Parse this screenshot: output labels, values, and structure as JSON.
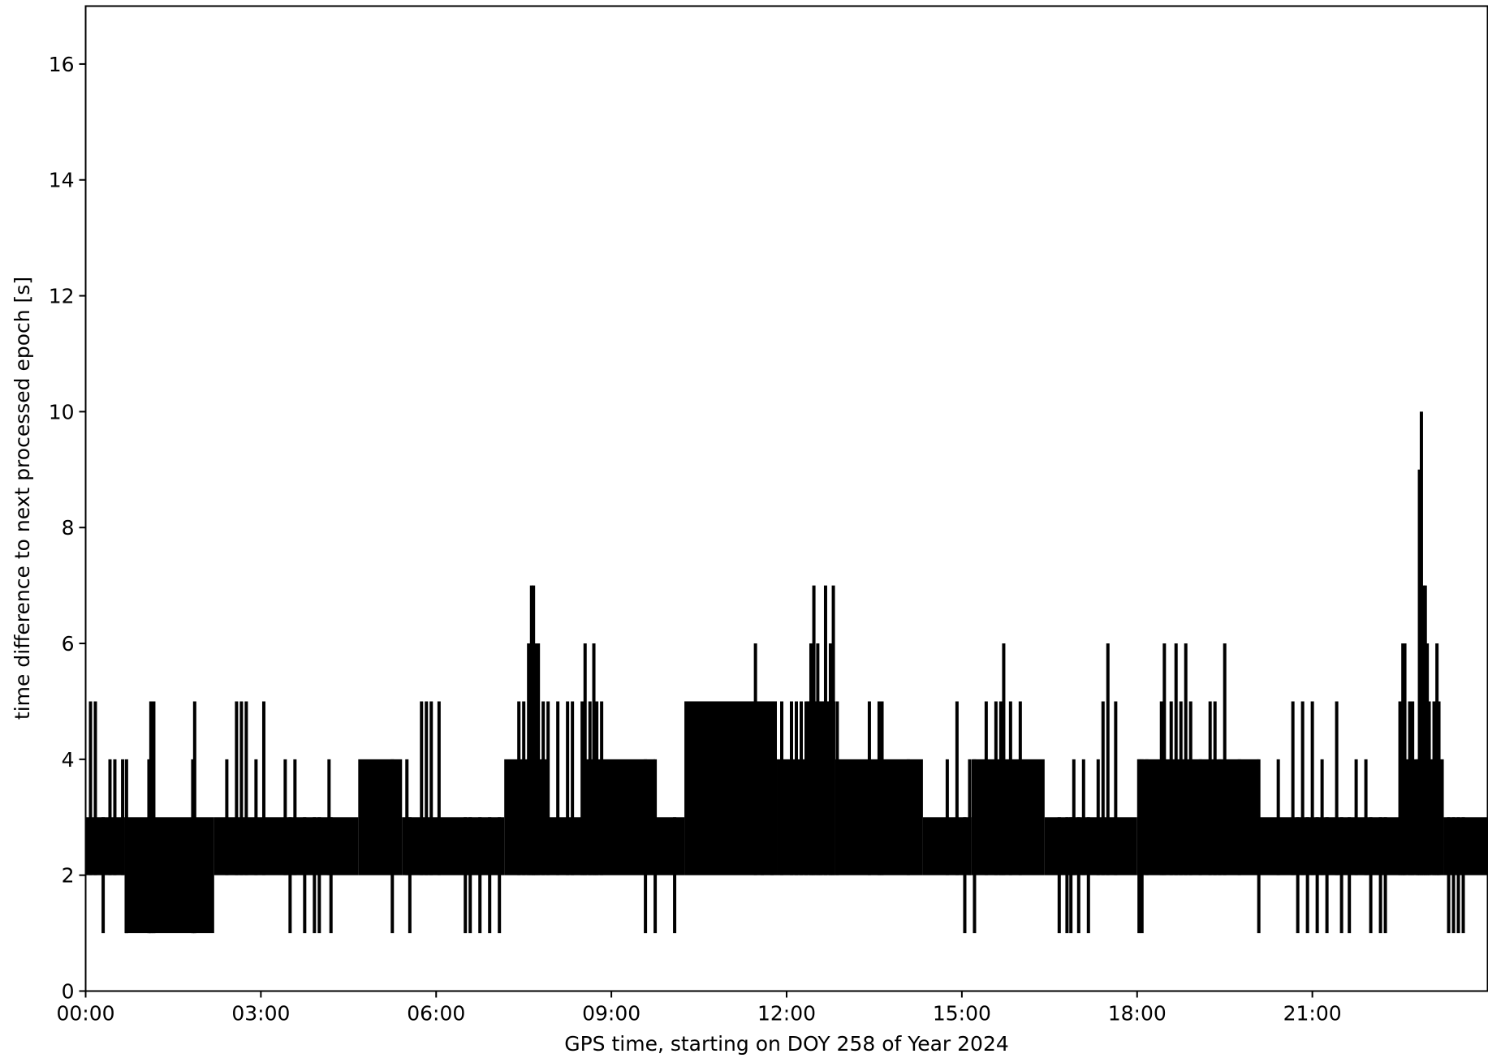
{
  "chart_data": {
    "type": "line",
    "title": "",
    "xlabel": "GPS time, starting on DOY 258 of Year 2024",
    "ylabel": "time difference to next processed epoch [s]",
    "xlim": [
      "00:00",
      "24:00"
    ],
    "ylim": [
      0,
      17
    ],
    "x_unit": "hours",
    "x_ticks": [
      "00:00",
      "03:00",
      "06:00",
      "09:00",
      "12:00",
      "15:00",
      "18:00",
      "21:00"
    ],
    "y_ticks": [
      "0",
      "2",
      "4",
      "6",
      "8",
      "10",
      "12",
      "14",
      "16"
    ],
    "grid": false,
    "line_color": "#000000",
    "band_segments": [
      {
        "from": "00:00",
        "to": "00:40",
        "low": 2,
        "high": 3
      },
      {
        "from": "00:40",
        "to": "02:12",
        "low": 1,
        "high": 3
      },
      {
        "from": "02:12",
        "to": "04:40",
        "low": 2,
        "high": 3
      },
      {
        "from": "04:40",
        "to": "05:25",
        "low": 2,
        "high": 4
      },
      {
        "from": "05:25",
        "to": "07:10",
        "low": 2,
        "high": 3
      },
      {
        "from": "07:10",
        "to": "07:55",
        "low": 2,
        "high": 4
      },
      {
        "from": "07:55",
        "to": "08:30",
        "low": 2,
        "high": 3
      },
      {
        "from": "08:30",
        "to": "09:45",
        "low": 2,
        "high": 4
      },
      {
        "from": "09:45",
        "to": "10:15",
        "low": 2,
        "high": 3
      },
      {
        "from": "10:15",
        "to": "11:50",
        "low": 2,
        "high": 5
      },
      {
        "from": "11:50",
        "to": "12:20",
        "low": 2,
        "high": 4
      },
      {
        "from": "12:20",
        "to": "12:50",
        "low": 2,
        "high": 5
      },
      {
        "from": "12:50",
        "to": "14:20",
        "low": 2,
        "high": 4
      },
      {
        "from": "14:20",
        "to": "15:10",
        "low": 2,
        "high": 3
      },
      {
        "from": "15:10",
        "to": "16:25",
        "low": 2,
        "high": 4
      },
      {
        "from": "16:25",
        "to": "18:00",
        "low": 2,
        "high": 3
      },
      {
        "from": "18:00",
        "to": "20:05",
        "low": 2,
        "high": 4
      },
      {
        "from": "20:05",
        "to": "22:30",
        "low": 2,
        "high": 3
      },
      {
        "from": "22:30",
        "to": "23:15",
        "low": 2,
        "high": 4
      },
      {
        "from": "23:15",
        "to": "24:00",
        "low": 2,
        "high": 3
      }
    ],
    "spikes": [
      {
        "t": "00:05",
        "v": 5
      },
      {
        "t": "00:10",
        "v": 5
      },
      {
        "t": "00:18",
        "v": 1
      },
      {
        "t": "00:25",
        "v": 4
      },
      {
        "t": "00:30",
        "v": 4
      },
      {
        "t": "00:38",
        "v": 4
      },
      {
        "t": "00:42",
        "v": 4
      },
      {
        "t": "01:05",
        "v": 4
      },
      {
        "t": "01:07",
        "v": 5
      },
      {
        "t": "01:10",
        "v": 5
      },
      {
        "t": "01:50",
        "v": 4
      },
      {
        "t": "01:52",
        "v": 5
      },
      {
        "t": "02:25",
        "v": 4
      },
      {
        "t": "02:35",
        "v": 5
      },
      {
        "t": "02:40",
        "v": 5
      },
      {
        "t": "02:45",
        "v": 5
      },
      {
        "t": "02:55",
        "v": 4
      },
      {
        "t": "03:03",
        "v": 5
      },
      {
        "t": "03:25",
        "v": 4
      },
      {
        "t": "03:30",
        "v": 1
      },
      {
        "t": "03:35",
        "v": 4
      },
      {
        "t": "03:45",
        "v": 1
      },
      {
        "t": "03:55",
        "v": 1
      },
      {
        "t": "04:00",
        "v": 1
      },
      {
        "t": "04:10",
        "v": 4
      },
      {
        "t": "04:12",
        "v": 1
      },
      {
        "t": "05:15",
        "v": 1
      },
      {
        "t": "05:30",
        "v": 4
      },
      {
        "t": "05:33",
        "v": 1
      },
      {
        "t": "05:45",
        "v": 5
      },
      {
        "t": "05:50",
        "v": 5
      },
      {
        "t": "05:55",
        "v": 5
      },
      {
        "t": "06:03",
        "v": 5
      },
      {
        "t": "06:30",
        "v": 1
      },
      {
        "t": "06:35",
        "v": 1
      },
      {
        "t": "06:45",
        "v": 1
      },
      {
        "t": "06:55",
        "v": 1
      },
      {
        "t": "07:05",
        "v": 1
      },
      {
        "t": "07:25",
        "v": 5
      },
      {
        "t": "07:30",
        "v": 5
      },
      {
        "t": "07:35",
        "v": 6
      },
      {
        "t": "07:38",
        "v": 7
      },
      {
        "t": "07:40",
        "v": 7
      },
      {
        "t": "07:42",
        "v": 6
      },
      {
        "t": "07:45",
        "v": 6
      },
      {
        "t": "07:50",
        "v": 5
      },
      {
        "t": "07:55",
        "v": 5
      },
      {
        "t": "08:05",
        "v": 5
      },
      {
        "t": "08:15",
        "v": 5
      },
      {
        "t": "08:20",
        "v": 5
      },
      {
        "t": "08:30",
        "v": 5
      },
      {
        "t": "08:33",
        "v": 6
      },
      {
        "t": "08:38",
        "v": 5
      },
      {
        "t": "08:42",
        "v": 6
      },
      {
        "t": "08:45",
        "v": 5
      },
      {
        "t": "08:50",
        "v": 5
      },
      {
        "t": "09:35",
        "v": 1
      },
      {
        "t": "09:45",
        "v": 1
      },
      {
        "t": "10:05",
        "v": 1
      },
      {
        "t": "11:28",
        "v": 6
      },
      {
        "t": "11:35",
        "v": 5
      },
      {
        "t": "11:45",
        "v": 4
      },
      {
        "t": "11:55",
        "v": 5
      },
      {
        "t": "12:05",
        "v": 5
      },
      {
        "t": "12:10",
        "v": 5
      },
      {
        "t": "12:15",
        "v": 5
      },
      {
        "t": "12:20",
        "v": 5
      },
      {
        "t": "12:25",
        "v": 6
      },
      {
        "t": "12:28",
        "v": 7
      },
      {
        "t": "12:32",
        "v": 6
      },
      {
        "t": "12:35",
        "v": 5
      },
      {
        "t": "12:40",
        "v": 7
      },
      {
        "t": "12:45",
        "v": 6
      },
      {
        "t": "12:48",
        "v": 7
      },
      {
        "t": "12:52",
        "v": 5
      },
      {
        "t": "13:25",
        "v": 5
      },
      {
        "t": "13:35",
        "v": 5
      },
      {
        "t": "13:38",
        "v": 5
      },
      {
        "t": "14:05",
        "v": 4
      },
      {
        "t": "14:45",
        "v": 4
      },
      {
        "t": "14:55",
        "v": 5
      },
      {
        "t": "15:03",
        "v": 1
      },
      {
        "t": "15:08",
        "v": 4
      },
      {
        "t": "15:13",
        "v": 1
      },
      {
        "t": "15:25",
        "v": 5
      },
      {
        "t": "15:35",
        "v": 5
      },
      {
        "t": "15:40",
        "v": 5
      },
      {
        "t": "15:43",
        "v": 6
      },
      {
        "t": "15:50",
        "v": 5
      },
      {
        "t": "16:00",
        "v": 5
      },
      {
        "t": "16:40",
        "v": 1
      },
      {
        "t": "16:48",
        "v": 1
      },
      {
        "t": "16:52",
        "v": 1
      },
      {
        "t": "16:55",
        "v": 4
      },
      {
        "t": "17:00",
        "v": 1
      },
      {
        "t": "17:05",
        "v": 4
      },
      {
        "t": "17:10",
        "v": 1
      },
      {
        "t": "17:20",
        "v": 4
      },
      {
        "t": "17:25",
        "v": 5
      },
      {
        "t": "17:30",
        "v": 6
      },
      {
        "t": "17:38",
        "v": 5
      },
      {
        "t": "18:02",
        "v": 1
      },
      {
        "t": "18:05",
        "v": 1
      },
      {
        "t": "18:10",
        "v": 4
      },
      {
        "t": "18:25",
        "v": 5
      },
      {
        "t": "18:28",
        "v": 6
      },
      {
        "t": "18:35",
        "v": 5
      },
      {
        "t": "18:40",
        "v": 6
      },
      {
        "t": "18:45",
        "v": 5
      },
      {
        "t": "18:50",
        "v": 6
      },
      {
        "t": "18:55",
        "v": 5
      },
      {
        "t": "19:05",
        "v": 4
      },
      {
        "t": "19:15",
        "v": 5
      },
      {
        "t": "19:20",
        "v": 5
      },
      {
        "t": "19:25",
        "v": 4
      },
      {
        "t": "19:30",
        "v": 6
      },
      {
        "t": "19:45",
        "v": 4
      },
      {
        "t": "20:05",
        "v": 1
      },
      {
        "t": "20:25",
        "v": 4
      },
      {
        "t": "20:40",
        "v": 5
      },
      {
        "t": "20:45",
        "v": 1
      },
      {
        "t": "20:50",
        "v": 5
      },
      {
        "t": "20:55",
        "v": 1
      },
      {
        "t": "21:00",
        "v": 5
      },
      {
        "t": "21:05",
        "v": 1
      },
      {
        "t": "21:10",
        "v": 4
      },
      {
        "t": "21:15",
        "v": 1
      },
      {
        "t": "21:25",
        "v": 5
      },
      {
        "t": "21:30",
        "v": 1
      },
      {
        "t": "21:38",
        "v": 1
      },
      {
        "t": "21:45",
        "v": 4
      },
      {
        "t": "21:55",
        "v": 4
      },
      {
        "t": "22:00",
        "v": 1
      },
      {
        "t": "22:10",
        "v": 1
      },
      {
        "t": "22:15",
        "v": 1
      },
      {
        "t": "22:30",
        "v": 5
      },
      {
        "t": "22:33",
        "v": 6
      },
      {
        "t": "22:35",
        "v": 6
      },
      {
        "t": "22:40",
        "v": 5
      },
      {
        "t": "22:43",
        "v": 5
      },
      {
        "t": "22:48",
        "v": 4
      },
      {
        "t": "22:50",
        "v": 9
      },
      {
        "t": "22:52",
        "v": 10
      },
      {
        "t": "22:54",
        "v": 7
      },
      {
        "t": "22:56",
        "v": 7
      },
      {
        "t": "22:58",
        "v": 6
      },
      {
        "t": "23:00",
        "v": 5
      },
      {
        "t": "23:05",
        "v": 5
      },
      {
        "t": "23:08",
        "v": 6
      },
      {
        "t": "23:10",
        "v": 5
      },
      {
        "t": "23:20",
        "v": 1
      },
      {
        "t": "23:25",
        "v": 1
      },
      {
        "t": "23:30",
        "v": 1
      },
      {
        "t": "23:35",
        "v": 1
      }
    ]
  }
}
